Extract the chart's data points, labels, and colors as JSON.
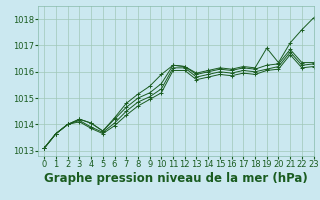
{
  "background_color": "#cbe8f0",
  "plot_bg_color": "#cbe8f0",
  "grid_color": "#a0c8b8",
  "line_color": "#1a5c20",
  "title": "Graphe pression niveau de la mer (hPa)",
  "xlim": [
    -0.5,
    23
  ],
  "ylim": [
    1012.8,
    1018.5
  ],
  "yticks": [
    1013,
    1014,
    1015,
    1016,
    1017,
    1018
  ],
  "xticks": [
    0,
    1,
    2,
    3,
    4,
    5,
    6,
    7,
    8,
    9,
    10,
    11,
    12,
    13,
    14,
    15,
    16,
    17,
    18,
    19,
    20,
    21,
    22,
    23
  ],
  "series": [
    [
      1013.1,
      1013.65,
      1014.0,
      1014.2,
      1014.05,
      1013.75,
      1014.25,
      1014.8,
      1015.15,
      1015.45,
      1015.9,
      1016.25,
      1016.2,
      1015.95,
      1016.05,
      1016.15,
      1016.1,
      1016.2,
      1016.15,
      1016.9,
      1016.35,
      1017.1,
      1017.6,
      1018.05
    ],
    [
      1013.1,
      1013.65,
      1014.0,
      1014.2,
      1014.05,
      1013.75,
      1014.2,
      1014.65,
      1015.0,
      1015.2,
      1015.55,
      1016.25,
      1016.2,
      1015.9,
      1016.0,
      1016.1,
      1016.05,
      1016.15,
      1016.1,
      1016.25,
      1016.3,
      1016.85,
      1016.35,
      1016.35
    ],
    [
      1013.1,
      1013.65,
      1014.0,
      1014.15,
      1013.9,
      1013.7,
      1014.05,
      1014.5,
      1014.85,
      1015.05,
      1015.35,
      1016.15,
      1016.15,
      1015.8,
      1015.9,
      1016.0,
      1015.95,
      1016.05,
      1016.0,
      1016.1,
      1016.2,
      1016.75,
      1016.25,
      1016.3
    ],
    [
      1013.1,
      1013.65,
      1014.0,
      1014.1,
      1013.85,
      1013.65,
      1013.95,
      1014.35,
      1014.7,
      1014.95,
      1015.2,
      1016.05,
      1016.05,
      1015.7,
      1015.8,
      1015.9,
      1015.85,
      1015.95,
      1015.9,
      1016.05,
      1016.1,
      1016.65,
      1016.15,
      1016.2
    ]
  ],
  "marker": "+",
  "marker_size": 3.5,
  "line_width": 0.7,
  "title_fontsize": 8.5,
  "title_fontweight": "bold",
  "tick_fontsize": 6,
  "tick_color": "#1a5c20",
  "title_color": "#1a5c20"
}
